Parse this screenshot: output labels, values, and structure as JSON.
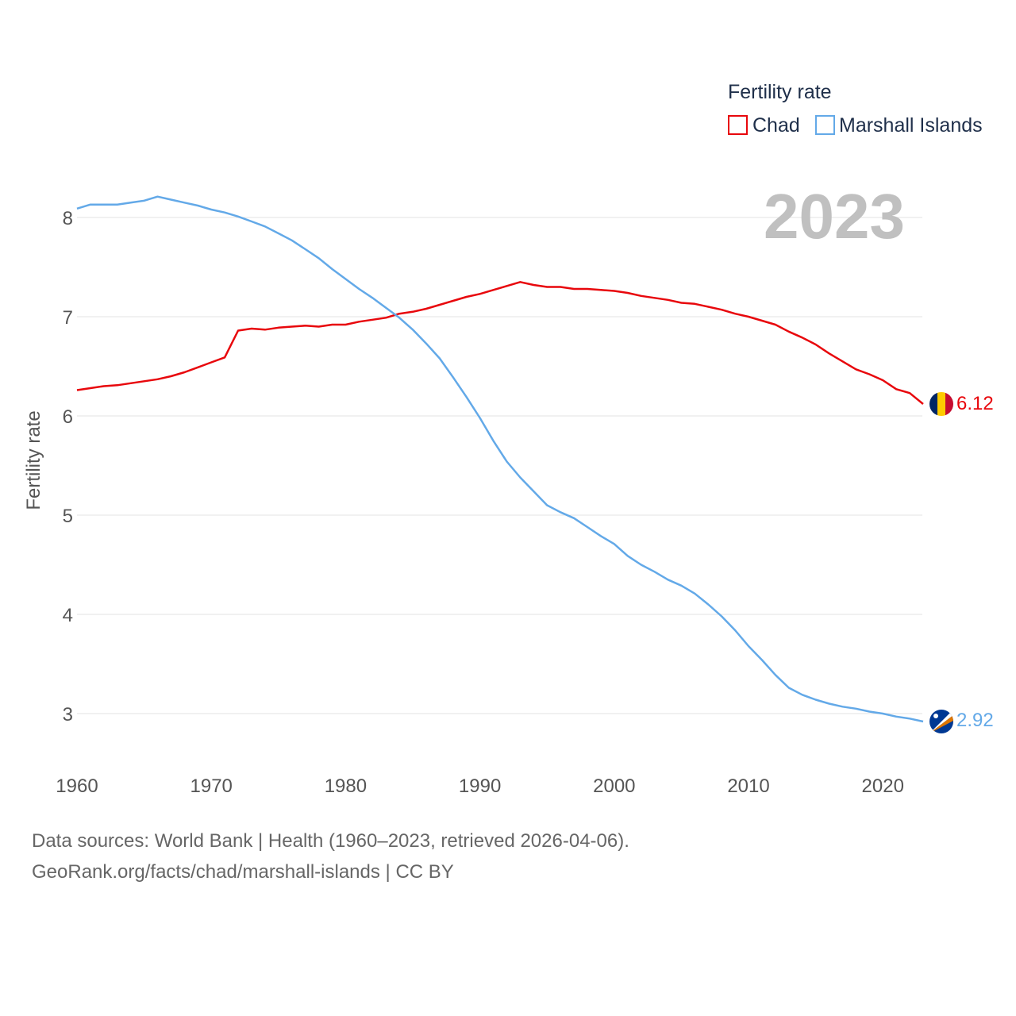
{
  "chart_data": {
    "type": "line",
    "title": "Fertility rate",
    "ylabel": "Fertility rate",
    "xlabel": "",
    "year_label": "2023",
    "xlim": [
      1960,
      2023
    ],
    "ylim": [
      2.5,
      8.4
    ],
    "x_ticks": [
      1960,
      1970,
      1980,
      1990,
      2000,
      2010,
      2020
    ],
    "y_ticks": [
      3,
      4,
      5,
      6,
      7,
      8
    ],
    "grid": true,
    "legend_position": "top-right",
    "x": [
      1960,
      1961,
      1962,
      1963,
      1964,
      1965,
      1966,
      1967,
      1968,
      1969,
      1970,
      1971,
      1972,
      1973,
      1974,
      1975,
      1976,
      1977,
      1978,
      1979,
      1980,
      1981,
      1982,
      1983,
      1984,
      1985,
      1986,
      1987,
      1988,
      1989,
      1990,
      1991,
      1992,
      1993,
      1994,
      1995,
      1996,
      1997,
      1998,
      1999,
      2000,
      2001,
      2002,
      2003,
      2004,
      2005,
      2006,
      2007,
      2008,
      2009,
      2010,
      2011,
      2012,
      2013,
      2014,
      2015,
      2016,
      2017,
      2018,
      2019,
      2020,
      2021,
      2022,
      2023
    ],
    "series": [
      {
        "name": "Chad",
        "color": "#e8070c",
        "end_label": "6.12",
        "values": [
          6.26,
          6.28,
          6.3,
          6.31,
          6.33,
          6.35,
          6.37,
          6.4,
          6.44,
          6.49,
          6.54,
          6.59,
          6.86,
          6.88,
          6.87,
          6.89,
          6.9,
          6.91,
          6.9,
          6.92,
          6.92,
          6.95,
          6.97,
          6.99,
          7.03,
          7.05,
          7.08,
          7.12,
          7.16,
          7.2,
          7.23,
          7.27,
          7.31,
          7.35,
          7.32,
          7.3,
          7.3,
          7.28,
          7.28,
          7.27,
          7.26,
          7.24,
          7.21,
          7.19,
          7.17,
          7.14,
          7.13,
          7.1,
          7.07,
          7.03,
          7.0,
          6.96,
          6.92,
          6.85,
          6.79,
          6.72,
          6.63,
          6.55,
          6.47,
          6.42,
          6.36,
          6.27,
          6.23,
          6.12
        ]
      },
      {
        "name": "Marshall Islands",
        "color": "#63a9e8",
        "end_label": "2.92",
        "values": [
          8.09,
          8.13,
          8.13,
          8.13,
          8.15,
          8.17,
          8.21,
          8.18,
          8.15,
          8.12,
          8.08,
          8.05,
          8.01,
          7.96,
          7.91,
          7.84,
          7.77,
          7.68,
          7.59,
          7.48,
          7.38,
          7.28,
          7.19,
          7.09,
          6.99,
          6.87,
          6.73,
          6.58,
          6.39,
          6.19,
          5.98,
          5.75,
          5.54,
          5.38,
          5.24,
          5.1,
          5.03,
          4.97,
          4.88,
          4.79,
          4.71,
          4.59,
          4.5,
          4.43,
          4.35,
          4.29,
          4.21,
          4.1,
          3.98,
          3.84,
          3.68,
          3.54,
          3.39,
          3.26,
          3.19,
          3.14,
          3.1,
          3.07,
          3.05,
          3.02,
          3.0,
          2.97,
          2.95,
          2.92
        ]
      }
    ]
  },
  "footer": {
    "sources": "Data sources: World Bank | Health (1960–2023, retrieved 2026-04-06).",
    "url": "GeoRank.org/facts/chad/marshall-islands | CC BY"
  }
}
